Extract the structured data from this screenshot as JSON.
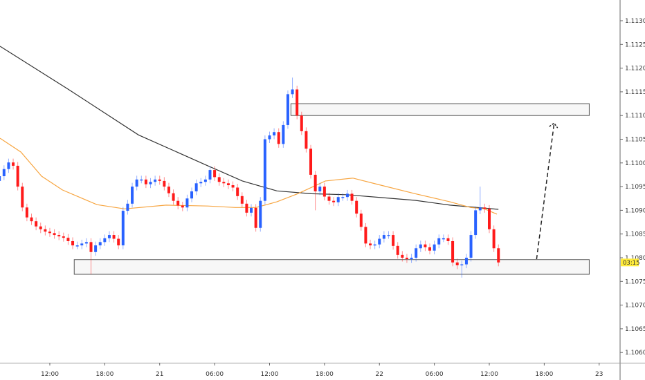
{
  "chart_data": {
    "type": "candlestick",
    "title": "",
    "bar_interval_minutes": 30,
    "first_bar": "20 06:30",
    "close": [
      1.10972,
      1.10987,
      1.11001,
      1.10994,
      1.1095,
      1.10906,
      1.10885,
      1.10877,
      1.10866,
      1.1086,
      1.10855,
      1.10852,
      1.10848,
      1.10845,
      1.10842,
      1.10835,
      1.10826,
      1.10826,
      1.1083,
      1.10833,
      1.10812,
      1.10826,
      1.10833,
      1.10841,
      1.10848,
      1.1084,
      1.10826,
      1.10899,
      1.10914,
      1.1095,
      1.10965,
      1.10965,
      1.10955,
      1.1096,
      1.10965,
      1.10962,
      1.1095,
      1.10936,
      1.1092,
      1.1091,
      1.10906,
      1.10925,
      1.1094,
      1.10957,
      1.1096,
      1.10965,
      1.10985,
      1.1097,
      1.1096,
      1.10957,
      1.10953,
      1.10948,
      1.1093,
      1.10914,
      1.10895,
      1.10905,
      1.10863,
      1.1092,
      1.1105,
      1.11058,
      1.11065,
      1.1104,
      1.1108,
      1.11145,
      1.11155,
      1.111,
      1.11067,
      1.1103,
      1.10975,
      1.1094,
      1.1095,
      1.10929,
      1.1092,
      1.10917,
      1.10928,
      1.10928,
      1.10935,
      1.1092,
      1.10893,
      1.10865,
      1.1083,
      1.10826,
      1.10828,
      1.1084,
      1.10848,
      1.10848,
      1.10825,
      1.10806,
      1.108,
      1.10797,
      1.108,
      1.1082,
      1.10828,
      1.10822,
      1.10815,
      1.10828,
      1.10841,
      1.10841,
      1.10835,
      1.1079,
      1.10784,
      1.10786,
      1.108,
      1.10848,
      1.109,
      1.10906,
      1.10903,
      1.1086,
      1.1082,
      1.1079
    ],
    "long_wicks": [
      {
        "bar": 20,
        "low": 1.10765
      },
      {
        "bar": 56,
        "low": 1.10855
      },
      {
        "bar": 64,
        "high": 1.1118
      },
      {
        "bar": 69,
        "low": 1.109
      },
      {
        "bar": 101,
        "low": 1.10758
      },
      {
        "bar": 105,
        "high": 1.1095
      }
    ],
    "moving_averages": [
      {
        "color": "#333333",
        "points": [
          [
            "20 06:34",
            1.11246
          ],
          [
            "20 14:08",
            1.11154
          ],
          [
            "20 21:41",
            1.11059
          ],
          [
            "21 05:15",
            1.10994
          ],
          [
            "21 09:02",
            1.10962
          ],
          [
            "21 12:48",
            1.10941
          ],
          [
            "21 16:35",
            1.10935
          ],
          [
            "21 20:22",
            1.10933
          ],
          [
            "22 00:09",
            1.10927
          ],
          [
            "22 03:55",
            1.10921
          ],
          [
            "22 07:42",
            1.10911
          ],
          [
            "22 13:00",
            1.10902
          ]
        ]
      },
      {
        "color": "#f7a540",
        "points": [
          [
            "20 06:34",
            1.11052
          ],
          [
            "20 08:50",
            1.11023
          ],
          [
            "20 11:06",
            1.10972
          ],
          [
            "20 13:22",
            1.10943
          ],
          [
            "20 17:09",
            1.10912
          ],
          [
            "20 20:10",
            1.10903
          ],
          [
            "21 00:42",
            1.10911
          ],
          [
            "21 05:15",
            1.10909
          ],
          [
            "21 08:16",
            1.10906
          ],
          [
            "21 10:32",
            1.10906
          ],
          [
            "21 12:48",
            1.10918
          ],
          [
            "21 15:04",
            1.10935
          ],
          [
            "21 18:06",
            1.10962
          ],
          [
            "21 21:07",
            1.10968
          ],
          [
            "22 00:09",
            1.10953
          ],
          [
            "22 03:55",
            1.10935
          ],
          [
            "22 07:42",
            1.10918
          ],
          [
            "22 09:58",
            1.10906
          ],
          [
            "22 11:28",
            1.10903
          ],
          [
            "22 12:50",
            1.10892
          ]
        ]
      }
    ],
    "zones": [
      {
        "start": "21 14:20",
        "end": "22 22:55",
        "top": 1.11125,
        "bottom": 1.111
      },
      {
        "start": "20 14:40",
        "end": "22 22:55",
        "top": 1.10796,
        "bottom": 1.10765
      }
    ],
    "projection_arrow": {
      "from": [
        "22 17:10",
        1.10797
      ],
      "to": [
        "22 19:05",
        1.11084
      ]
    },
    "y_ticks": [
      "1.11300",
      "1.11250",
      "1.11200",
      "1.11150",
      "1.11100",
      "1.11050",
      "1.11000",
      "1.10950",
      "1.10900",
      "1.10850",
      "1.10800",
      "1.10750",
      "1.10700",
      "1.10650",
      "1.10600"
    ],
    "x_ticks": [
      {
        "label": "12:00",
        "time": "20 12:00"
      },
      {
        "label": "18:00",
        "time": "20 18:00"
      },
      {
        "label": "21",
        "time": "21 00:00"
      },
      {
        "label": "06:00",
        "time": "21 06:00"
      },
      {
        "label": "12:00",
        "time": "21 12:00"
      },
      {
        "label": "18:00",
        "time": "21 18:00"
      },
      {
        "label": "22",
        "time": "22 00:00"
      },
      {
        "label": "06:00",
        "time": "22 06:00"
      },
      {
        "label": "12:00",
        "time": "22 12:00"
      },
      {
        "label": "18:00",
        "time": "22 18:00"
      },
      {
        "label": "23",
        "time": "23 00:00"
      }
    ],
    "current_price": 1.1079,
    "countdown_label": "03:15",
    "colors": {
      "up": "#2962ff",
      "down": "#ff1a1a",
      "countdown_bg": "#ffeb3b",
      "zone_fill": "#f7f7f7",
      "zone_border": "#555555"
    }
  }
}
